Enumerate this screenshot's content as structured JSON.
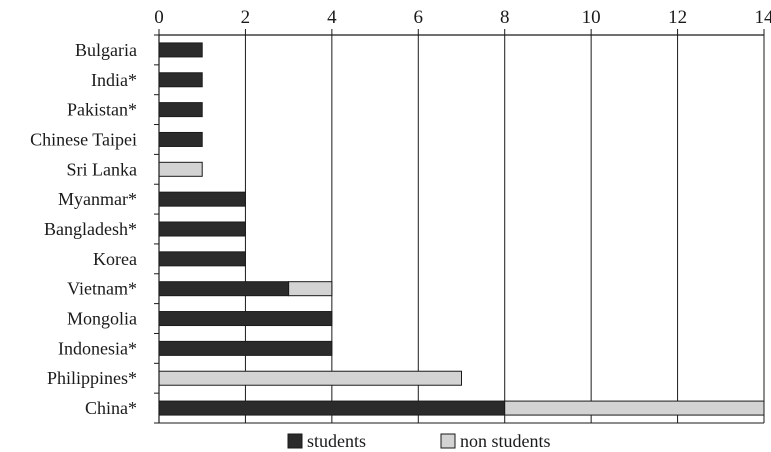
{
  "chart_data": {
    "type": "bar",
    "orientation": "horizontal",
    "stacked": true,
    "title": "",
    "xlabel": "",
    "ylabel": "",
    "xlim": [
      0,
      14
    ],
    "x_ticks": [
      0,
      2,
      4,
      6,
      8,
      10,
      12,
      14
    ],
    "x_axis_position": "top",
    "grid": true,
    "legend_position": "bottom",
    "categories": [
      "Bulgaria",
      "India*",
      "Pakistan*",
      "Chinese Taipei",
      "Sri Lanka",
      "Myanmar*",
      "Bangladesh*",
      "Korea",
      "Vietnam*",
      "Mongolia",
      "Indonesia*",
      "Philippines*",
      "China*"
    ],
    "series": [
      {
        "name": "students",
        "color": "#2b2b2b",
        "values": [
          1,
          1,
          1,
          1,
          0,
          2,
          2,
          2,
          3,
          4,
          4,
          0,
          8
        ]
      },
      {
        "name": "non students",
        "color": "#d3d3d3",
        "values": [
          0,
          0,
          0,
          0,
          1,
          0,
          0,
          0,
          1,
          0,
          0,
          7,
          6
        ]
      }
    ]
  }
}
